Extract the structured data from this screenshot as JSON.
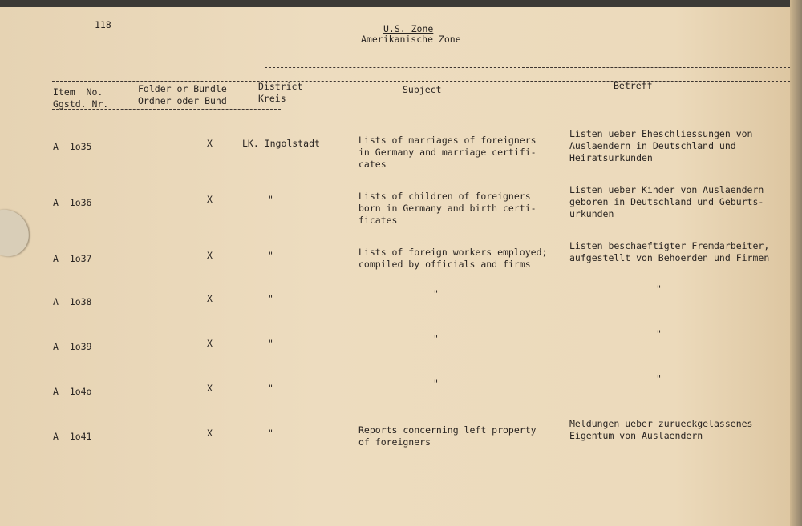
{
  "page_number": "118",
  "header": {
    "title": "U.S. Zone",
    "subtitle": "Amerikanische Zone"
  },
  "columns": {
    "item": "Item  No.\nGgstd. Nr.",
    "folder": "Folder or Bundle\nOrdner oder Bund",
    "district": "District\nKreis",
    "subject": "Subject",
    "betreff": "Betreff"
  },
  "rows": [
    {
      "item": "A  1o35",
      "folder": "X",
      "district": "LK. Ingolstadt",
      "subject": "Lists of marriages of foreigners\nin Germany and marriage certifi-\ncates",
      "betreff": "Listen ueber Eheschliessungen von\nAuslaendern in Deutschland und\nHeiratsurkunden"
    },
    {
      "item": "A  1o36",
      "folder": "X",
      "district": "\"",
      "subject": "Lists of children of foreigners\nborn in Germany and birth certi-\nficates",
      "betreff": "Listen ueber Kinder von Auslaendern\ngeboren in Deutschland und Geburts-\nurkunden"
    },
    {
      "item": "A  1o37",
      "folder": "X",
      "district": "\"",
      "subject": "Lists of foreign workers employed;\ncompiled by officials and firms",
      "betreff": "Listen beschaeftigter Fremdarbeiter,\naufgestellt von Behoerden und Firmen"
    },
    {
      "item": "A  1o38",
      "folder": "X",
      "district": "\"",
      "subject": "\"",
      "betreff": "\""
    },
    {
      "item": "A  1o39",
      "folder": "X",
      "district": "\"",
      "subject": "\"",
      "betreff": "\""
    },
    {
      "item": "A  1o4o",
      "folder": "X",
      "district": "\"",
      "subject": "\"",
      "betreff": "\""
    },
    {
      "item": "A  1o41",
      "folder": "X",
      "district": "\"",
      "subject": "Reports concerning left property\nof foreigners",
      "betreff": "Meldungen ueber zurueckgelassenes\nEigentum von Auslaendern"
    }
  ]
}
